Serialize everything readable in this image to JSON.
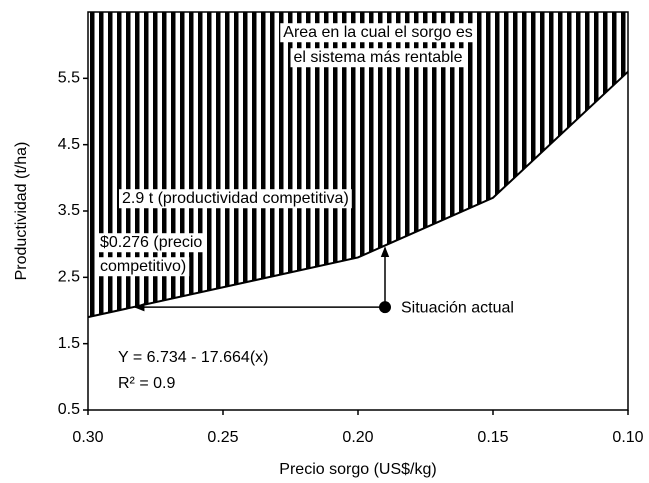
{
  "chart_data": {
    "type": "line",
    "xlabel": "Precio sorgo (US$/kg)",
    "ylabel": "Productividad (t/ha)",
    "xlim": [
      0.3,
      0.1
    ],
    "xticks": [
      {
        "value": 0.3,
        "label": "0.30"
      },
      0.25,
      {
        "value": 0.2,
        "label": "0.20"
      },
      0.15,
      {
        "value": 0.1,
        "label": "0.10"
      }
    ],
    "ylim": [
      0.5,
      6.5
    ],
    "yticks": [
      0.5,
      1.5,
      2.5,
      3.5,
      4.5,
      5.5
    ],
    "series": [
      {
        "color": "#000000",
        "x": [
          0.3,
          0.2,
          0.15,
          0.1
        ],
        "values": [
          1.9,
          2.8,
          3.7,
          5.6
        ]
      }
    ],
    "point": {
      "name": "Situación actual",
      "x": 0.19,
      "y": 2.05
    },
    "annotations": {
      "area": [
        "Area en la cual el sorgo es",
        "el sistema más rentable"
      ],
      "productivity": "2.9 t (productividad competitiva)",
      "price": [
        "$0.276 (precio",
        "competitivo)"
      ],
      "equation": "Y = 6.734 - 17.664(x)",
      "r2": "R² = 0.9"
    }
  }
}
